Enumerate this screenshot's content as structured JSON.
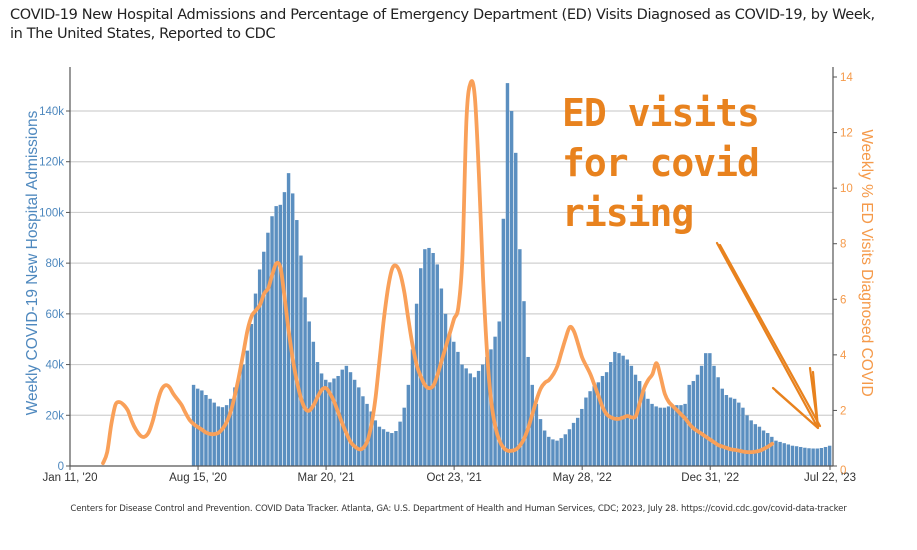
{
  "title": "COVID-19 New Hospital Admissions and Percentage of Emergency Department (ED) Visits Diagnosed as COVID-19, by Week, in The United States, Reported to CDC",
  "title_lines": [
    "COVID-19 New Hospital Admissions and Percentage of Emergency Department (ED) Visits Diagnosed as COVID-19, by Week,",
    "in The United States, Reported to CDC"
  ],
  "footnote": "Centers for Disease Control and Prevention. COVID Data Tracker. Atlanta, GA: U.S. Department of Health and Human Services, CDC; 2023, July 28. https://covid.cdc.gov/covid-data-tracker",
  "annotation": {
    "lines": [
      "ED visits",
      "for covid",
      "rising"
    ],
    "color": "#e8821e"
  },
  "colors": {
    "bars": "#5b8fc0",
    "line": "#f9a059",
    "left_axis": "#4e88be",
    "right_axis": "#f59a4a",
    "grid": "#d0d0d0"
  },
  "chart_data": {
    "type": "bar+line",
    "title": "COVID-19 New Hospital Admissions and Percentage of Emergency Department (ED) Visits Diagnosed as COVID-19, by Week, in The United States, Reported to CDC",
    "xlabel": "",
    "ylabel": "Weekly COVID-19 New Hospital Admissions",
    "y2label": "Weekly % ED Visits Diagnosed COVID",
    "ylim": [
      0,
      160000
    ],
    "y2lim": [
      0,
      14.5
    ],
    "grid": true,
    "x_start_week": "Jan 11, '20",
    "x_total_weeks": 184,
    "x_ticks": [
      {
        "label": "Jan 11, '20",
        "week": 0
      },
      {
        "label": "Aug 15, '20",
        "week": 31
      },
      {
        "label": "Mar 20, '21",
        "week": 62
      },
      {
        "label": "Oct 23, '21",
        "week": 93
      },
      {
        "label": "May 28, '22",
        "week": 124
      },
      {
        "label": "Dec 31, '22",
        "week": 155
      },
      {
        "label": "Jul 22, '23",
        "week": 184
      }
    ],
    "y_ticks": [
      {
        "label": "0",
        "value": 0
      },
      {
        "label": "20k",
        "value": 20000
      },
      {
        "label": "40k",
        "value": 40000
      },
      {
        "label": "60k",
        "value": 60000
      },
      {
        "label": "80k",
        "value": 80000
      },
      {
        "label": "100k",
        "value": 100000
      },
      {
        "label": "120k",
        "value": 120000
      },
      {
        "label": "140k",
        "value": 140000
      }
    ],
    "y2_ticks": [
      {
        "label": "0",
        "value": 0
      },
      {
        "label": "2",
        "value": 2
      },
      {
        "label": "4",
        "value": 4
      },
      {
        "label": "6",
        "value": 6
      },
      {
        "label": "8",
        "value": 8
      },
      {
        "label": "10",
        "value": 10
      },
      {
        "label": "12",
        "value": 12
      },
      {
        "label": "14",
        "value": 14
      }
    ],
    "series": [
      {
        "name": "Weekly COVID-19 New Hospital Admissions",
        "type": "bar",
        "axis": "left",
        "start_week": 30,
        "values": [
          32000,
          30500,
          29800,
          28000,
          26500,
          25000,
          23500,
          23200,
          24000,
          26500,
          31000,
          35000,
          40000,
          45500,
          56000,
          68000,
          77500,
          84500,
          92000,
          98500,
          102500,
          103000,
          108000,
          115500,
          107500,
          97000,
          83000,
          66500,
          57000,
          49000,
          41000,
          36500,
          34000,
          33000,
          34500,
          35500,
          38000,
          39500,
          37000,
          34000,
          31000,
          27500,
          24500,
          21500,
          18000,
          15500,
          14500,
          13500,
          13000,
          13800,
          17500,
          23000,
          32000,
          46000,
          64000,
          78000,
          85500,
          86000,
          84000,
          79500,
          70000,
          60000,
          52000,
          49000,
          45000,
          40000,
          38500,
          36500,
          35000,
          37500,
          40000,
          43000,
          46000,
          51000,
          57000,
          97500,
          151000,
          140000,
          123500,
          85500,
          65000,
          43000,
          32000,
          24500,
          18500,
          14000,
          11500,
          10500,
          10000,
          11000,
          12500,
          14500,
          17000,
          19000,
          22500,
          27000,
          29500,
          31500,
          33000,
          35500,
          37000,
          41000,
          45000,
          44500,
          43500,
          42000,
          39500,
          36000,
          33500,
          29500,
          26500,
          24500,
          23500,
          23000,
          23000,
          23500,
          23500,
          24000,
          24000,
          24500,
          32000,
          33500,
          36000,
          39500,
          44500,
          44500,
          39500,
          35000,
          30500,
          28000,
          27000,
          26500,
          25000,
          23000,
          20000,
          18000,
          16500,
          15500,
          14000,
          13000,
          11500,
          10000,
          9500,
          9000,
          8500,
          8000,
          7800,
          7500,
          7200,
          7000,
          6900,
          6900,
          7100,
          7500,
          8000
        ]
      },
      {
        "name": "Weekly % ED Visits Diagnosed COVID",
        "type": "line",
        "axis": "right",
        "points": [
          [
            8,
            0.1
          ],
          [
            9,
            0.5
          ],
          [
            10,
            1.5
          ],
          [
            11,
            2.2
          ],
          [
            12,
            2.3
          ],
          [
            13,
            2.2
          ],
          [
            14,
            2.0
          ],
          [
            15,
            1.6
          ],
          [
            16,
            1.3
          ],
          [
            17,
            1.1
          ],
          [
            18,
            1.05
          ],
          [
            19,
            1.2
          ],
          [
            20,
            1.6
          ],
          [
            21,
            2.2
          ],
          [
            22,
            2.7
          ],
          [
            23,
            2.9
          ],
          [
            24,
            2.85
          ],
          [
            25,
            2.6
          ],
          [
            26,
            2.4
          ],
          [
            27,
            2.2
          ],
          [
            28,
            1.9
          ],
          [
            29,
            1.65
          ],
          [
            30,
            1.5
          ],
          [
            31,
            1.4
          ],
          [
            32,
            1.3
          ],
          [
            33,
            1.2
          ],
          [
            34,
            1.15
          ],
          [
            35,
            1.15
          ],
          [
            36,
            1.2
          ],
          [
            37,
            1.35
          ],
          [
            38,
            1.6
          ],
          [
            39,
            2.0
          ],
          [
            40,
            2.6
          ],
          [
            41,
            3.3
          ],
          [
            42,
            4.1
          ],
          [
            43,
            4.9
          ],
          [
            44,
            5.4
          ],
          [
            45,
            5.6
          ],
          [
            46,
            5.8
          ],
          [
            47,
            6.2
          ],
          [
            48,
            6.4
          ],
          [
            49,
            6.9
          ],
          [
            50,
            7.3
          ],
          [
            51,
            7.1
          ],
          [
            52,
            6.0
          ],
          [
            53,
            4.8
          ],
          [
            54,
            3.8
          ],
          [
            55,
            3.0
          ],
          [
            56,
            2.4
          ],
          [
            57,
            2.05
          ],
          [
            58,
            2.0
          ],
          [
            59,
            2.2
          ],
          [
            60,
            2.5
          ],
          [
            61,
            2.75
          ],
          [
            62,
            2.8
          ],
          [
            63,
            2.6
          ],
          [
            64,
            2.3
          ],
          [
            65,
            1.9
          ],
          [
            66,
            1.5
          ],
          [
            67,
            1.15
          ],
          [
            68,
            0.85
          ],
          [
            69,
            0.7
          ],
          [
            70,
            0.6
          ],
          [
            71,
            0.65
          ],
          [
            72,
            0.9
          ],
          [
            73,
            1.5
          ],
          [
            74,
            2.5
          ],
          [
            75,
            3.9
          ],
          [
            76,
            5.3
          ],
          [
            77,
            6.4
          ],
          [
            78,
            7.1
          ],
          [
            79,
            7.2
          ],
          [
            80,
            6.9
          ],
          [
            81,
            6.2
          ],
          [
            82,
            5.2
          ],
          [
            83,
            4.3
          ],
          [
            84,
            3.6
          ],
          [
            85,
            3.2
          ],
          [
            86,
            2.9
          ],
          [
            87,
            2.8
          ],
          [
            88,
            2.9
          ],
          [
            89,
            3.3
          ],
          [
            90,
            3.8
          ],
          [
            91,
            4.3
          ],
          [
            92,
            4.8
          ],
          [
            93,
            5.3
          ],
          [
            94,
            5.7
          ],
          [
            95,
            7.5
          ],
          [
            96,
            12.5
          ],
          [
            97,
            13.8
          ],
          [
            98,
            13.3
          ],
          [
            99,
            10.5
          ],
          [
            100,
            6.8
          ],
          [
            101,
            4.0
          ],
          [
            102,
            2.3
          ],
          [
            103,
            1.4
          ],
          [
            104,
            0.9
          ],
          [
            105,
            0.65
          ],
          [
            106,
            0.55
          ],
          [
            107,
            0.55
          ],
          [
            108,
            0.6
          ],
          [
            109,
            0.75
          ],
          [
            110,
            1.0
          ],
          [
            111,
            1.4
          ],
          [
            112,
            1.9
          ],
          [
            113,
            2.4
          ],
          [
            114,
            2.8
          ],
          [
            115,
            3.0
          ],
          [
            116,
            3.1
          ],
          [
            117,
            3.3
          ],
          [
            118,
            3.6
          ],
          [
            119,
            4.1
          ],
          [
            120,
            4.6
          ],
          [
            121,
            5.0
          ],
          [
            122,
            4.85
          ],
          [
            123,
            4.4
          ],
          [
            124,
            3.9
          ],
          [
            125,
            3.6
          ],
          [
            126,
            3.3
          ],
          [
            127,
            2.9
          ],
          [
            128,
            2.5
          ],
          [
            129,
            2.1
          ],
          [
            130,
            1.85
          ],
          [
            131,
            1.75
          ],
          [
            132,
            1.7
          ],
          [
            133,
            1.7
          ],
          [
            134,
            1.75
          ],
          [
            135,
            1.8
          ],
          [
            136,
            1.75
          ],
          [
            137,
            1.8
          ],
          [
            138,
            2.3
          ],
          [
            139,
            2.8
          ],
          [
            140,
            3.1
          ],
          [
            141,
            3.3
          ],
          [
            142,
            3.7
          ],
          [
            143,
            3.2
          ],
          [
            144,
            2.6
          ],
          [
            145,
            2.3
          ],
          [
            146,
            2.15
          ],
          [
            147,
            2.0
          ],
          [
            148,
            1.85
          ],
          [
            149,
            1.7
          ],
          [
            150,
            1.5
          ],
          [
            151,
            1.35
          ],
          [
            152,
            1.25
          ],
          [
            153,
            1.15
          ],
          [
            154,
            1.05
          ],
          [
            155,
            0.95
          ],
          [
            156,
            0.85
          ],
          [
            157,
            0.75
          ],
          [
            158,
            0.7
          ],
          [
            159,
            0.65
          ],
          [
            160,
            0.6
          ],
          [
            161,
            0.58
          ],
          [
            162,
            0.55
          ],
          [
            163,
            0.52
          ],
          [
            164,
            0.5
          ],
          [
            165,
            0.5
          ],
          [
            166,
            0.52
          ],
          [
            167,
            0.55
          ],
          [
            168,
            0.62
          ],
          [
            169,
            0.7
          ],
          [
            170,
            0.8
          ]
        ]
      }
    ],
    "annotation_text": "ED visits for covid rising"
  }
}
